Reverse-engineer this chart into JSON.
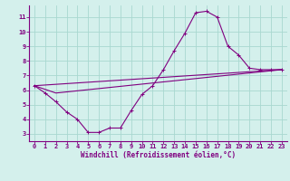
{
  "xlabel": "Windchill (Refroidissement éolien,°C)",
  "background_color": "#d4f0ec",
  "grid_color": "#a8d8d0",
  "line_color": "#800080",
  "spine_color": "#800080",
  "xlim": [
    -0.5,
    23.5
  ],
  "ylim": [
    2.5,
    11.8
  ],
  "yticks": [
    3,
    4,
    5,
    6,
    7,
    8,
    9,
    10,
    11
  ],
  "xticks": [
    0,
    1,
    2,
    3,
    4,
    5,
    6,
    7,
    8,
    9,
    10,
    11,
    12,
    13,
    14,
    15,
    16,
    17,
    18,
    19,
    20,
    21,
    22,
    23
  ],
  "curve1_x": [
    0,
    1,
    2,
    3,
    4,
    5,
    6,
    7,
    8,
    9,
    10,
    11,
    12,
    13,
    14,
    15,
    16,
    17,
    18,
    19,
    20,
    21,
    22,
    23
  ],
  "curve1_y": [
    6.3,
    5.8,
    5.2,
    4.5,
    4.0,
    3.1,
    3.1,
    3.4,
    3.4,
    4.6,
    5.7,
    6.3,
    7.4,
    8.7,
    9.9,
    11.3,
    11.4,
    11.0,
    9.0,
    8.4,
    7.5,
    7.4,
    7.4,
    7.4
  ],
  "curve2_x": [
    0,
    23
  ],
  "curve2_y": [
    6.3,
    7.4
  ],
  "curve3_x": [
    0,
    2,
    23
  ],
  "curve3_y": [
    6.3,
    5.8,
    7.4
  ],
  "tick_fontsize": 5.0,
  "xlabel_fontsize": 5.5,
  "lw": 0.8,
  "ms": 2.8
}
